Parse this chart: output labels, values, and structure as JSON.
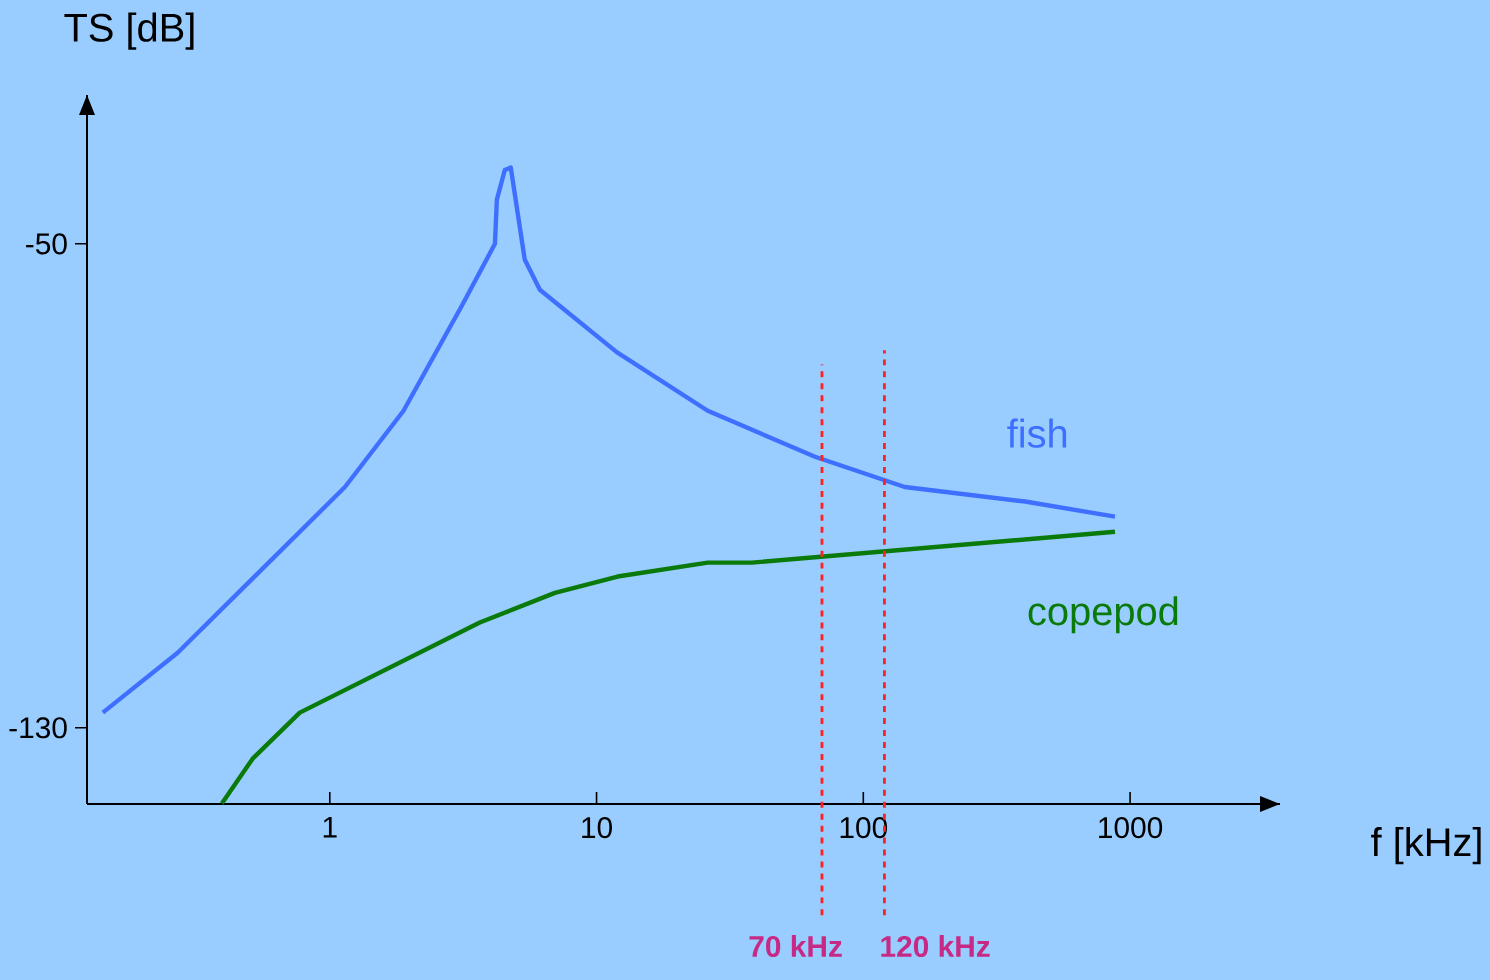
{
  "chart_data": {
    "type": "line",
    "xlabel": "f [kHz]",
    "ylabel": "TS [dB]",
    "log": "x",
    "xlim": [
      0.123,
      3648
    ],
    "ylim": [
      -142.6,
      -25.4
    ],
    "xticks": [
      1,
      10,
      100,
      1000
    ],
    "yticks": [
      -50,
      -130
    ],
    "grid": false,
    "legend": false,
    "marker": "none",
    "series": [
      {
        "name": "fish",
        "color": "#3f6fff",
        "x": [
          0.141,
          0.269,
          1.14,
          1.89,
          3.13,
          4.16,
          4.23,
          4.53,
          4.77,
          5.38,
          6.13,
          11.9,
          26.1,
          65.9,
          143,
          404,
          878
        ],
        "values": [
          -127.5,
          -117.6,
          -90.2,
          -77.6,
          -60.2,
          -50,
          -42.7,
          -37.8,
          -37.4,
          -52.6,
          -57.6,
          -67.9,
          -77.6,
          -85.2,
          -90.2,
          -92.6,
          -95.1
        ]
      },
      {
        "name": "copepod",
        "color": "#0a7a0a",
        "x": [
          0.394,
          0.514,
          0.772,
          3.65,
          6.98,
          12.0,
          26.1,
          38.2,
          878
        ],
        "values": [
          -142.5,
          -135.1,
          -127.5,
          -112.6,
          -107.7,
          -105.0,
          -102.7,
          -102.7,
          -97.6
        ]
      }
    ],
    "ref_lines": [
      {
        "axis": "x",
        "value": 70,
        "label": "70 kHz",
        "color": "#ff2020",
        "line_style": "dashed"
      },
      {
        "axis": "x",
        "value": 120,
        "label": "120 kHz",
        "color": "#ff2020",
        "line_style": "dashed"
      }
    ]
  }
}
